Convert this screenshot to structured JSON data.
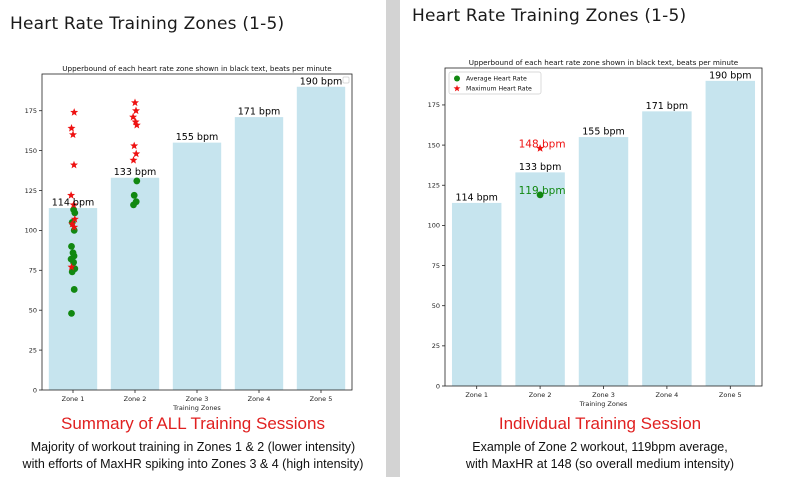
{
  "panels": [
    {
      "title": "Heart Rate Training Zones (1-5)",
      "caption": {
        "title": "Summary of ALL Training Sessions",
        "line1": "Majority of workout training in Zones 1 & 2 (lower intensity)",
        "line2": "with efforts of MaxHR spiking into Zones 3 & 4 (high intensity)"
      }
    },
    {
      "title": "Heart Rate Training Zones (1-5)",
      "caption": {
        "title": "Individual Training Session",
        "line1": "Example of Zone 2 workout, 119bpm average,",
        "line2": "with MaxHR at 148 (so overall medium intensity)"
      }
    }
  ],
  "chart_data": [
    {
      "type": "bar",
      "title": "Upperbound of each heart rate zone shown in black text, beats per minute",
      "xlabel": "Training Zones",
      "ylabel": "",
      "categories": [
        "Zone 1",
        "Zone 2",
        "Zone 3",
        "Zone 4",
        "Zone 5"
      ],
      "values": [
        114,
        133,
        155,
        171,
        190
      ],
      "bar_labels": [
        "114 bpm",
        "133 bpm",
        "155 bpm",
        "171 bpm",
        "190 bpm"
      ],
      "ylim": [
        0,
        198
      ],
      "yticks": [
        0,
        25,
        50,
        75,
        100,
        125,
        150,
        175
      ],
      "grid": false,
      "bar_color": "#c6e4ee",
      "legend": {
        "placement": "top-right",
        "entries": []
      },
      "scatter": [
        {
          "marker": "circle",
          "color": "#118811",
          "points": [
            {
              "x": "Zone 1",
              "y": 48
            },
            {
              "x": "Zone 1",
              "y": 63
            },
            {
              "x": "Zone 1",
              "y": 74
            },
            {
              "x": "Zone 1",
              "y": 76
            },
            {
              "x": "Zone 1",
              "y": 80
            },
            {
              "x": "Zone 1",
              "y": 82
            },
            {
              "x": "Zone 1",
              "y": 84
            },
            {
              "x": "Zone 1",
              "y": 86
            },
            {
              "x": "Zone 1",
              "y": 90
            },
            {
              "x": "Zone 1",
              "y": 100
            },
            {
              "x": "Zone 1",
              "y": 105
            },
            {
              "x": "Zone 1",
              "y": 111
            },
            {
              "x": "Zone 1",
              "y": 113
            },
            {
              "x": "Zone 2",
              "y": 116
            },
            {
              "x": "Zone 2",
              "y": 118
            },
            {
              "x": "Zone 2",
              "y": 122
            },
            {
              "x": "Zone 2",
              "y": 131
            }
          ]
        },
        {
          "marker": "star",
          "color": "#ee1111",
          "points": [
            {
              "x": "Zone 1",
              "y": 77
            },
            {
              "x": "Zone 1",
              "y": 102
            },
            {
              "x": "Zone 1",
              "y": 104
            },
            {
              "x": "Zone 1",
              "y": 107
            },
            {
              "x": "Zone 1",
              "y": 116
            },
            {
              "x": "Zone 1",
              "y": 122
            },
            {
              "x": "Zone 1",
              "y": 141
            },
            {
              "x": "Zone 1",
              "y": 160
            },
            {
              "x": "Zone 1",
              "y": 164
            },
            {
              "x": "Zone 1",
              "y": 174
            },
            {
              "x": "Zone 2",
              "y": 144
            },
            {
              "x": "Zone 2",
              "y": 148
            },
            {
              "x": "Zone 2",
              "y": 153
            },
            {
              "x": "Zone 2",
              "y": 166
            },
            {
              "x": "Zone 2",
              "y": 168
            },
            {
              "x": "Zone 2",
              "y": 171
            },
            {
              "x": "Zone 2",
              "y": 175
            },
            {
              "x": "Zone 2",
              "y": 180
            }
          ]
        }
      ]
    },
    {
      "type": "bar",
      "title": "Upperbound of each heart rate zone shown in black text, beats per minute",
      "xlabel": "Training Zones",
      "ylabel": "",
      "categories": [
        "Zone 1",
        "Zone 2",
        "Zone 3",
        "Zone 4",
        "Zone 5"
      ],
      "values": [
        114,
        133,
        155,
        171,
        190
      ],
      "bar_labels": [
        "114 bpm",
        "133 bpm",
        "155 bpm",
        "171 bpm",
        "190 bpm"
      ],
      "ylim": [
        0,
        198
      ],
      "yticks": [
        0,
        25,
        50,
        75,
        100,
        125,
        150,
        175
      ],
      "grid": false,
      "bar_color": "#c6e4ee",
      "legend": {
        "placement": "top-left",
        "entries": [
          {
            "label": "Average Heart Rate",
            "marker": "circle",
            "color": "#118811"
          },
          {
            "label": "Maximum Heart Rate",
            "marker": "star",
            "color": "#ee1111"
          }
        ]
      },
      "scatter": [
        {
          "marker": "circle",
          "color": "#118811",
          "points": [
            {
              "x": "Zone 2",
              "y": 119
            }
          ],
          "annotations": [
            {
              "x": "Zone 2",
              "y": 119,
              "text": "119 bpm"
            }
          ]
        },
        {
          "marker": "star",
          "color": "#ee1111",
          "points": [
            {
              "x": "Zone 2",
              "y": 148
            }
          ],
          "annotations": [
            {
              "x": "Zone 2",
              "y": 148,
              "text": "148 bpm"
            }
          ]
        }
      ]
    }
  ]
}
